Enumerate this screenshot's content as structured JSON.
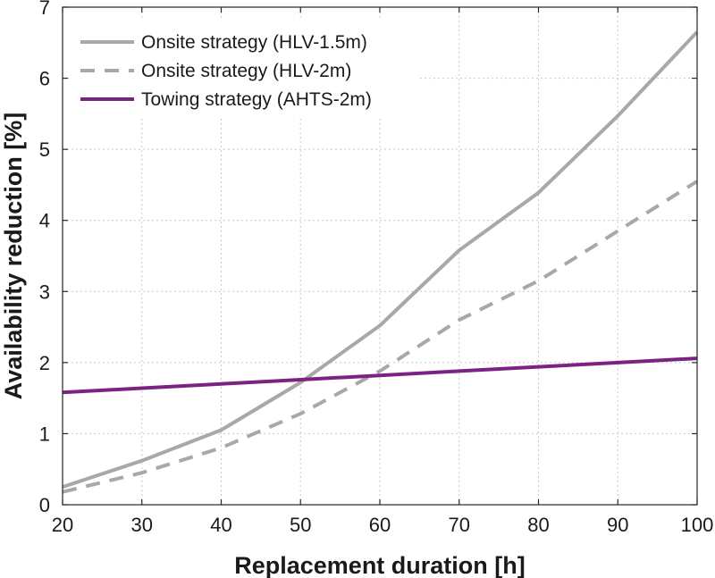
{
  "chart_data": {
    "type": "line",
    "xlabel": "Replacement duration [h]",
    "ylabel": "Availability reduction [%]",
    "xlim": [
      20,
      100
    ],
    "ylim": [
      0,
      7
    ],
    "xticks": [
      20,
      30,
      40,
      50,
      60,
      70,
      80,
      90,
      100
    ],
    "yticks": [
      0,
      1,
      2,
      3,
      4,
      5,
      6,
      7
    ],
    "grid": true,
    "legend_position": "top-left",
    "x": [
      20,
      30,
      40,
      50,
      60,
      70,
      80,
      90,
      100
    ],
    "series": [
      {
        "name": "Onsite strategy (HLV-1.5m)",
        "values": [
          0.25,
          0.62,
          1.05,
          1.72,
          2.52,
          3.58,
          4.39,
          5.47,
          6.65
        ],
        "color": "#a8a8a8",
        "style": "solid"
      },
      {
        "name": "Onsite strategy (HLV-2m)",
        "values": [
          0.18,
          0.45,
          0.8,
          1.28,
          1.88,
          2.6,
          3.15,
          3.85,
          4.55
        ],
        "color": "#a8a8a8",
        "style": "dashed"
      },
      {
        "name": "Towing strategy (AHTS-2m)",
        "values": [
          1.58,
          1.64,
          1.7,
          1.76,
          1.82,
          1.88,
          1.94,
          2.0,
          2.06
        ],
        "color": "#7b2382",
        "style": "solid"
      }
    ]
  }
}
